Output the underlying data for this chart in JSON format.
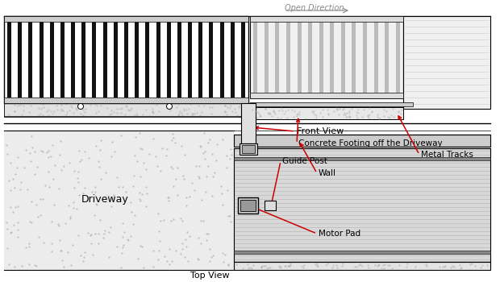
{
  "bg_color": "#ffffff",
  "line_color": "#000000",
  "arrow_color": "#cc0000",
  "text_color": "#000000",
  "gray_text": "#888888",
  "labels": {
    "front_view": "Front View",
    "top_view": "Top View",
    "concrete_footing": "Concrete Footing off the Driveway",
    "metal_tracks": "Metal Tracks",
    "guide_post": "Guide Post",
    "wall": "Wall",
    "motor_pad": "Motor Pad",
    "driveway": "Driveway",
    "open_direction": "Open Direction"
  }
}
